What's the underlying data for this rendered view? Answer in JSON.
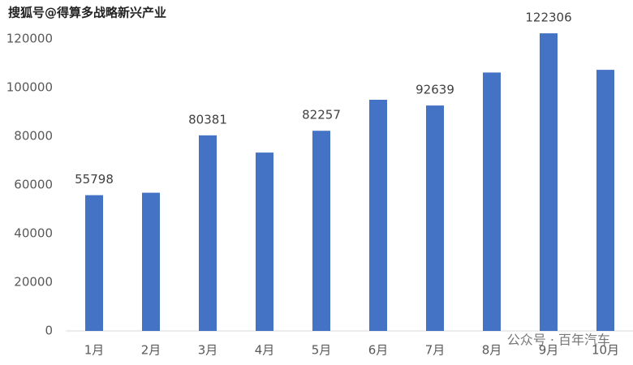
{
  "chart_data": {
    "type": "bar",
    "watermarks": [
      "搜狐号@得算多战略新兴产业",
      "公众号 · 百年汽车"
    ],
    "categories": [
      "1月",
      "2月",
      "3月",
      "4月",
      "5月",
      "6月",
      "7月",
      "8月",
      "9月",
      "10月"
    ],
    "values": [
      55798,
      56800,
      80381,
      73300,
      82257,
      95000,
      92639,
      106200,
      122306,
      107300
    ],
    "value_labels": [
      "55798",
      null,
      "80381",
      null,
      "82257",
      null,
      "92639",
      null,
      "122306",
      null
    ],
    "color": "#4472c4",
    "ylim": [
      0,
      130000
    ],
    "yticks": [
      0,
      20000,
      40000,
      60000,
      80000,
      100000,
      120000
    ],
    "grid": false
  }
}
